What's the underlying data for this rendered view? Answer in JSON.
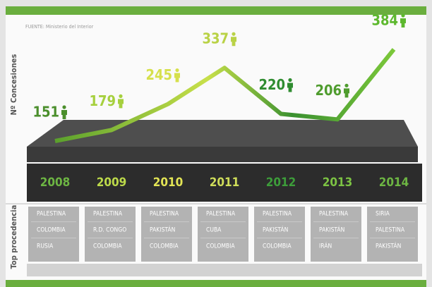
{
  "chart_data": {
    "type": "line",
    "source": "FUENTE: Ministerio del Interior",
    "ylabel": "Nº Concesiones",
    "categories": [
      "2008",
      "2009",
      "2010",
      "2011",
      "2012",
      "2013",
      "2014"
    ],
    "values": [
      151,
      179,
      245,
      337,
      220,
      206,
      384
    ],
    "point_colors": [
      "#4b8f2c",
      "#a6d03e",
      "#d6e04c",
      "#b9d246",
      "#2f8c30",
      "#4f9c2e",
      "#5db82e"
    ],
    "category_colors": [
      "#6db543",
      "#bcd94a",
      "#e2e455",
      "#cfdd5a",
      "#3d9d3a",
      "#7cc243",
      "#6db543"
    ],
    "line_color": "#7cc23c",
    "table_label": "Top procedencia",
    "top_origins": [
      [
        "PALESTINA",
        "COLOMBIA",
        "RUSIA"
      ],
      [
        "PALESTINA",
        "R.D. CONGO",
        "COLOMBIA"
      ],
      [
        "PALESTINA",
        "PAKISTÁN",
        "COLOMBIA"
      ],
      [
        "PALESTINA",
        "CUBA",
        "COLOMBIA"
      ],
      [
        "PALESTINA",
        "PAKISTÁN",
        "COLOMBIA"
      ],
      [
        "PALESTINA",
        "PAKISTÁN",
        "IRÁN"
      ],
      [
        "SIRIA",
        "PALESTINA",
        "PAKISTÁN"
      ]
    ]
  }
}
